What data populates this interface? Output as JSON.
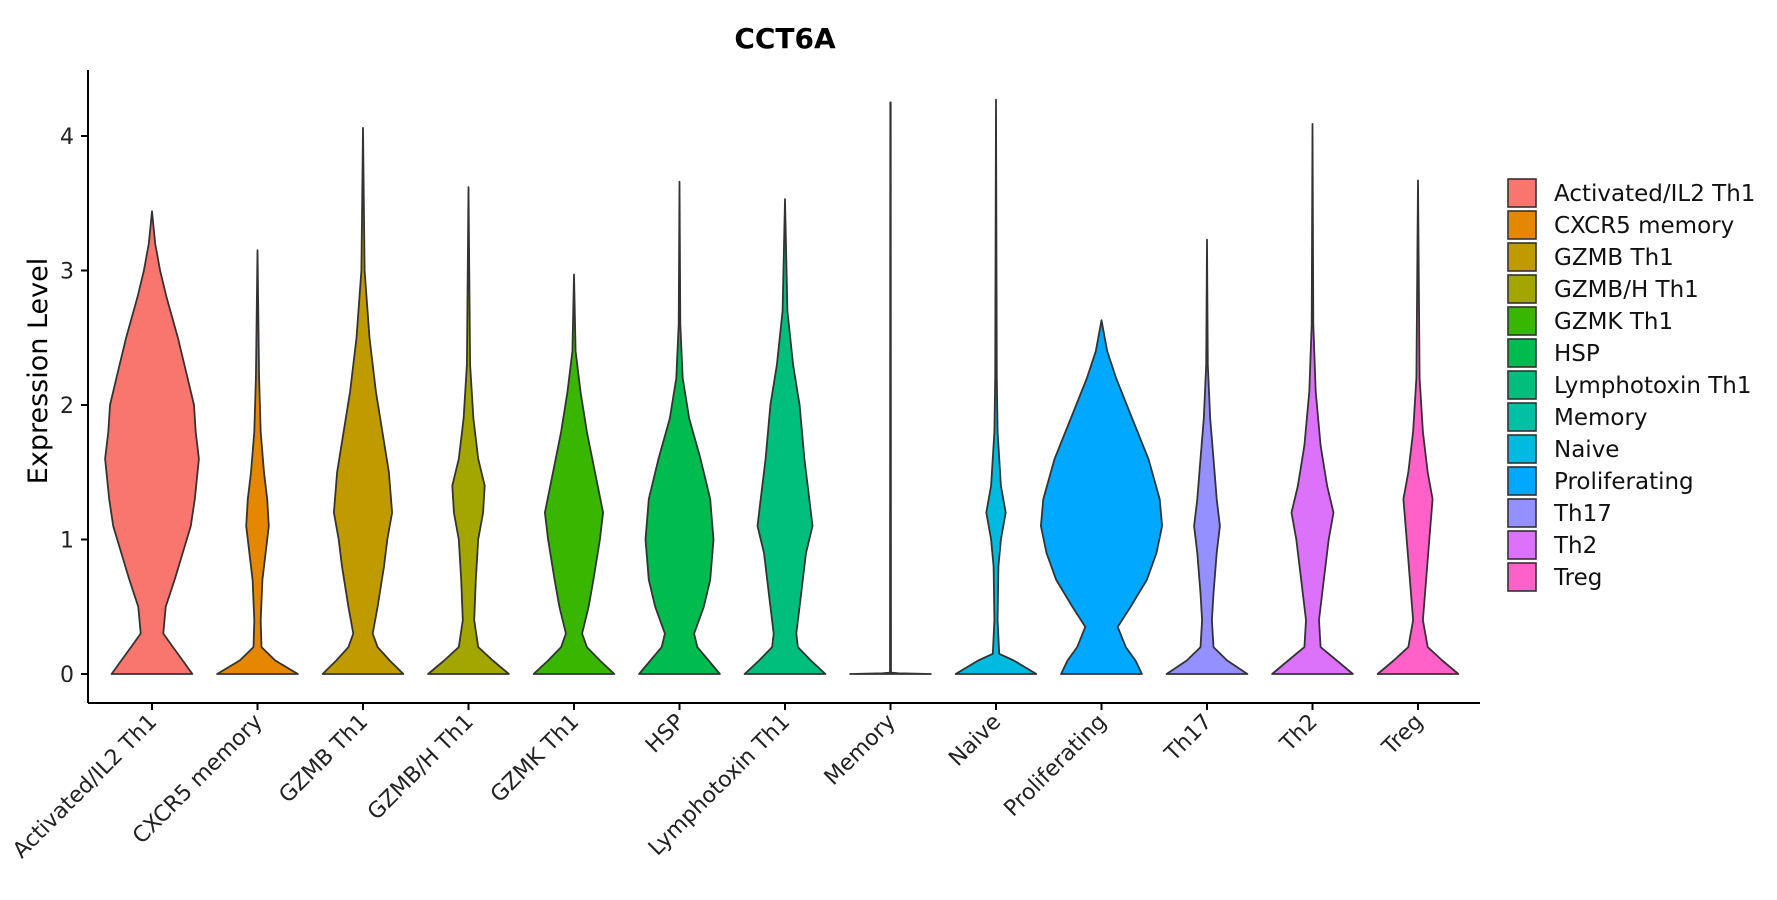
{
  "chart_data": {
    "type": "violin",
    "title": "CCT6A",
    "xlabel": "",
    "ylabel": "Expression Level",
    "ylim": [
      -0.2,
      4.5
    ],
    "yticks": [
      "0",
      "1",
      "2",
      "3",
      "4"
    ],
    "grid": false,
    "legend": "right",
    "categories": [
      {
        "name": "Activated/IL2 Th1",
        "color": "#F8766D",
        "max": 3.44,
        "profile": [
          [
            0,
            0.5
          ],
          [
            0.1,
            0.38
          ],
          [
            0.2,
            0.26
          ],
          [
            0.3,
            0.14
          ],
          [
            0.5,
            0.17
          ],
          [
            0.7,
            0.28
          ],
          [
            0.9,
            0.38
          ],
          [
            1.1,
            0.48
          ],
          [
            1.3,
            0.53
          ],
          [
            1.6,
            0.58
          ],
          [
            1.8,
            0.54
          ],
          [
            2.0,
            0.52
          ],
          [
            2.2,
            0.44
          ],
          [
            2.5,
            0.32
          ],
          [
            2.8,
            0.18
          ],
          [
            3.0,
            0.1
          ],
          [
            3.2,
            0.04
          ],
          [
            3.44,
            0.0
          ]
        ]
      },
      {
        "name": "CXCR5 memory",
        "color": "#E58700",
        "max": 3.15,
        "profile": [
          [
            0,
            0.5
          ],
          [
            0.1,
            0.22
          ],
          [
            0.2,
            0.05
          ],
          [
            0.4,
            0.04
          ],
          [
            0.7,
            0.06
          ],
          [
            0.9,
            0.1
          ],
          [
            1.1,
            0.14
          ],
          [
            1.3,
            0.12
          ],
          [
            1.5,
            0.08
          ],
          [
            1.8,
            0.04
          ],
          [
            2.2,
            0.02
          ],
          [
            3.15,
            0.0
          ]
        ]
      },
      {
        "name": "GZMB Th1",
        "color": "#C09B00",
        "max": 4.06,
        "profile": [
          [
            0,
            0.5
          ],
          [
            0.1,
            0.33
          ],
          [
            0.2,
            0.18
          ],
          [
            0.3,
            0.12
          ],
          [
            0.5,
            0.18
          ],
          [
            0.8,
            0.26
          ],
          [
            1.0,
            0.3
          ],
          [
            1.2,
            0.36
          ],
          [
            1.5,
            0.32
          ],
          [
            1.8,
            0.24
          ],
          [
            2.1,
            0.16
          ],
          [
            2.5,
            0.08
          ],
          [
            3.0,
            0.02
          ],
          [
            4.06,
            0.0
          ]
        ]
      },
      {
        "name": "GZMB/H Th1",
        "color": "#A3A500",
        "max": 3.62,
        "profile": [
          [
            0,
            0.5
          ],
          [
            0.1,
            0.3
          ],
          [
            0.2,
            0.12
          ],
          [
            0.4,
            0.07
          ],
          [
            0.7,
            0.09
          ],
          [
            1.0,
            0.12
          ],
          [
            1.2,
            0.18
          ],
          [
            1.4,
            0.2
          ],
          [
            1.6,
            0.12
          ],
          [
            1.9,
            0.06
          ],
          [
            2.3,
            0.02
          ],
          [
            3.62,
            0.0
          ]
        ]
      },
      {
        "name": "GZMK Th1",
        "color": "#39B600",
        "max": 2.97,
        "profile": [
          [
            0,
            0.5
          ],
          [
            0.1,
            0.32
          ],
          [
            0.2,
            0.16
          ],
          [
            0.3,
            0.1
          ],
          [
            0.5,
            0.18
          ],
          [
            0.7,
            0.24
          ],
          [
            1.0,
            0.32
          ],
          [
            1.2,
            0.36
          ],
          [
            1.5,
            0.26
          ],
          [
            1.8,
            0.16
          ],
          [
            2.1,
            0.08
          ],
          [
            2.4,
            0.02
          ],
          [
            2.97,
            0.0
          ]
        ]
      },
      {
        "name": "HSP",
        "color": "#00BB4E",
        "max": 3.66,
        "profile": [
          [
            0,
            0.5
          ],
          [
            0.1,
            0.36
          ],
          [
            0.2,
            0.22
          ],
          [
            0.3,
            0.18
          ],
          [
            0.5,
            0.3
          ],
          [
            0.7,
            0.38
          ],
          [
            1.0,
            0.42
          ],
          [
            1.3,
            0.38
          ],
          [
            1.6,
            0.26
          ],
          [
            1.9,
            0.12
          ],
          [
            2.2,
            0.04
          ],
          [
            2.6,
            0.01
          ],
          [
            3.66,
            0.0
          ]
        ]
      },
      {
        "name": "Lymphotoxin Th1",
        "color": "#00BF7D",
        "max": 3.53,
        "profile": [
          [
            0,
            0.5
          ],
          [
            0.1,
            0.32
          ],
          [
            0.2,
            0.16
          ],
          [
            0.3,
            0.14
          ],
          [
            0.6,
            0.2
          ],
          [
            0.9,
            0.26
          ],
          [
            1.1,
            0.34
          ],
          [
            1.3,
            0.3
          ],
          [
            1.6,
            0.24
          ],
          [
            2.0,
            0.18
          ],
          [
            2.3,
            0.1
          ],
          [
            2.7,
            0.03
          ],
          [
            3.53,
            0.0
          ]
        ]
      },
      {
        "name": "Memory",
        "color": "#00C1A3",
        "max": 4.25,
        "profile": [
          [
            0,
            0.5
          ],
          [
            0.005,
            0.1
          ],
          [
            0.01,
            0.006
          ],
          [
            4.25,
            0.003
          ]
        ]
      },
      {
        "name": "Naive",
        "color": "#00BAE0",
        "max": 4.27,
        "profile": [
          [
            0,
            0.5
          ],
          [
            0.1,
            0.22
          ],
          [
            0.15,
            0.04
          ],
          [
            0.4,
            0.02
          ],
          [
            0.8,
            0.03
          ],
          [
            1.0,
            0.06
          ],
          [
            1.2,
            0.12
          ],
          [
            1.4,
            0.06
          ],
          [
            1.8,
            0.02
          ],
          [
            2.2,
            0.01
          ],
          [
            4.27,
            0.0
          ]
        ]
      },
      {
        "name": "Proliferating",
        "color": "#00A9FF",
        "max": 2.63,
        "profile": [
          [
            0,
            0.5
          ],
          [
            0.1,
            0.42
          ],
          [
            0.2,
            0.3
          ],
          [
            0.35,
            0.2
          ],
          [
            0.5,
            0.36
          ],
          [
            0.7,
            0.56
          ],
          [
            0.9,
            0.68
          ],
          [
            1.1,
            0.75
          ],
          [
            1.3,
            0.72
          ],
          [
            1.6,
            0.58
          ],
          [
            1.9,
            0.38
          ],
          [
            2.2,
            0.18
          ],
          [
            2.4,
            0.07
          ],
          [
            2.63,
            0.0
          ]
        ]
      },
      {
        "name": "Th17",
        "color": "#9590FF",
        "max": 3.23,
        "profile": [
          [
            0,
            0.5
          ],
          [
            0.1,
            0.25
          ],
          [
            0.2,
            0.08
          ],
          [
            0.4,
            0.06
          ],
          [
            0.6,
            0.08
          ],
          [
            0.9,
            0.12
          ],
          [
            1.1,
            0.16
          ],
          [
            1.3,
            0.12
          ],
          [
            1.6,
            0.08
          ],
          [
            1.9,
            0.04
          ],
          [
            2.3,
            0.01
          ],
          [
            3.23,
            0.0
          ]
        ]
      },
      {
        "name": "Th2",
        "color": "#DC71FA",
        "max": 4.09,
        "profile": [
          [
            0,
            0.5
          ],
          [
            0.1,
            0.3
          ],
          [
            0.2,
            0.1
          ],
          [
            0.4,
            0.08
          ],
          [
            0.7,
            0.14
          ],
          [
            1.0,
            0.2
          ],
          [
            1.2,
            0.26
          ],
          [
            1.4,
            0.18
          ],
          [
            1.7,
            0.1
          ],
          [
            2.1,
            0.04
          ],
          [
            2.6,
            0.01
          ],
          [
            4.09,
            0.0
          ]
        ]
      },
      {
        "name": "Treg",
        "color": "#FF61C9",
        "max": 3.67,
        "profile": [
          [
            0,
            0.5
          ],
          [
            0.1,
            0.3
          ],
          [
            0.2,
            0.12
          ],
          [
            0.4,
            0.06
          ],
          [
            0.7,
            0.1
          ],
          [
            1.0,
            0.14
          ],
          [
            1.3,
            0.18
          ],
          [
            1.5,
            0.12
          ],
          [
            1.8,
            0.06
          ],
          [
            2.2,
            0.02
          ],
          [
            3.67,
            0.0
          ]
        ]
      }
    ],
    "legend_entries": [
      {
        "label": "Activated/IL2 Th1",
        "color": "#F8766D"
      },
      {
        "label": "CXCR5 memory",
        "color": "#E58700"
      },
      {
        "label": "GZMB Th1",
        "color": "#C09B00"
      },
      {
        "label": "GZMB/H Th1",
        "color": "#A3A500"
      },
      {
        "label": "GZMK Th1",
        "color": "#39B600"
      },
      {
        "label": "HSP",
        "color": "#00BB4E"
      },
      {
        "label": "Lymphotoxin Th1",
        "color": "#00BF7D"
      },
      {
        "label": "Memory",
        "color": "#00C1A3"
      },
      {
        "label": "Naive",
        "color": "#00BAE0"
      },
      {
        "label": "Proliferating",
        "color": "#00A9FF"
      },
      {
        "label": "Th17",
        "color": "#9590FF"
      },
      {
        "label": "Th2",
        "color": "#DC71FA"
      },
      {
        "label": "Treg",
        "color": "#FF61C9"
      }
    ]
  }
}
